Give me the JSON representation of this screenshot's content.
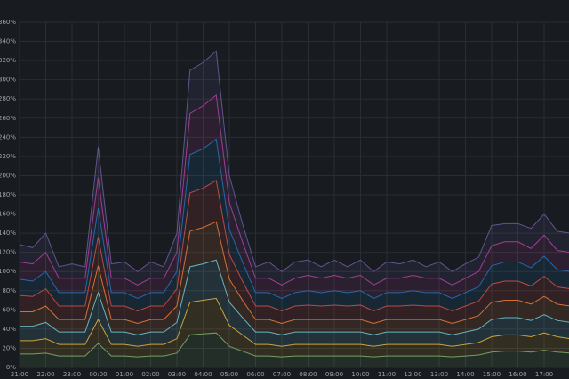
{
  "chart_data": {
    "type": "stacked-area",
    "x": [
      "21:00",
      "21:30",
      "22:00",
      "22:30",
      "23:00",
      "23:30",
      "00:00",
      "00:30",
      "01:00",
      "01:30",
      "02:00",
      "02:30",
      "03:00",
      "03:30",
      "04:00",
      "04:30",
      "05:00",
      "05:30",
      "06:00",
      "06:30",
      "07:00",
      "07:30",
      "08:00",
      "08:30",
      "09:00",
      "09:30",
      "10:00",
      "10:30",
      "11:00",
      "11:30",
      "12:00",
      "12:30",
      "13:00",
      "13:30",
      "14:00",
      "14:30",
      "15:00",
      "15:30",
      "16:00",
      "16:30",
      "17:00",
      "17:30",
      "18:00"
    ],
    "series": [
      {
        "color": "#7eb26d",
        "values": [
          14,
          14,
          15,
          12,
          12,
          12,
          25,
          12,
          12,
          11,
          12,
          12,
          15,
          34,
          35,
          36,
          22,
          17,
          12,
          12,
          11,
          12,
          12,
          12,
          12,
          12,
          12,
          11,
          12,
          12,
          12,
          12,
          12,
          11,
          12,
          13,
          16,
          17,
          17,
          16,
          18,
          16,
          15
        ]
      },
      {
        "color": "#eab839",
        "values": [
          14,
          14,
          15,
          12,
          12,
          12,
          25,
          12,
          12,
          11,
          12,
          12,
          15,
          34,
          35,
          36,
          22,
          17,
          12,
          12,
          11,
          12,
          12,
          12,
          12,
          12,
          12,
          11,
          12,
          12,
          12,
          12,
          12,
          11,
          12,
          13,
          16,
          17,
          17,
          16,
          18,
          16,
          15
        ]
      },
      {
        "color": "#6ed0e0",
        "values": [
          15,
          15,
          17,
          13,
          13,
          13,
          28,
          13,
          13,
          12,
          13,
          13,
          17,
          37,
          38,
          40,
          24,
          18,
          13,
          13,
          12,
          13,
          13,
          13,
          13,
          13,
          13,
          12,
          13,
          13,
          13,
          13,
          13,
          12,
          13,
          14,
          18,
          18,
          18,
          17,
          19,
          17,
          17
        ]
      },
      {
        "color": "#ef843c",
        "values": [
          15,
          15,
          17,
          13,
          13,
          13,
          28,
          13,
          13,
          12,
          13,
          13,
          17,
          37,
          38,
          40,
          24,
          18,
          13,
          13,
          12,
          13,
          13,
          13,
          13,
          13,
          13,
          12,
          13,
          13,
          13,
          13,
          13,
          12,
          13,
          14,
          18,
          18,
          18,
          17,
          19,
          17,
          17
        ]
      },
      {
        "color": "#e24d42",
        "values": [
          17,
          16,
          18,
          14,
          14,
          14,
          30,
          14,
          14,
          13,
          14,
          14,
          18,
          40,
          41,
          43,
          26,
          20,
          14,
          14,
          13,
          14,
          15,
          14,
          15,
          14,
          15,
          13,
          14,
          14,
          15,
          14,
          14,
          13,
          14,
          15,
          19,
          20,
          20,
          19,
          21,
          18,
          18
        ]
      },
      {
        "color": "#1f78c1",
        "values": [
          17,
          16,
          18,
          14,
          14,
          14,
          30,
          14,
          14,
          13,
          14,
          14,
          18,
          40,
          41,
          43,
          26,
          20,
          14,
          14,
          13,
          14,
          15,
          14,
          15,
          14,
          15,
          13,
          14,
          14,
          15,
          14,
          14,
          13,
          14,
          15,
          19,
          20,
          20,
          19,
          21,
          18,
          18
        ]
      },
      {
        "color": "#ba43a6",
        "values": [
          18,
          18,
          20,
          15,
          15,
          15,
          32,
          15,
          15,
          14,
          15,
          15,
          20,
          43,
          45,
          46,
          28,
          21,
          15,
          15,
          14,
          15,
          16,
          15,
          16,
          15,
          16,
          14,
          15,
          15,
          16,
          15,
          15,
          14,
          15,
          16,
          21,
          21,
          21,
          20,
          22,
          20,
          20
        ]
      },
      {
        "color": "#705da0",
        "values": [
          18,
          17,
          20,
          12,
          15,
          12,
          32,
          15,
          17,
          14,
          17,
          12,
          20,
          45,
          45,
          46,
          28,
          19,
          12,
          17,
          14,
          17,
          16,
          12,
          16,
          12,
          16,
          14,
          17,
          15,
          16,
          12,
          17,
          14,
          15,
          15,
          21,
          19,
          19,
          21,
          22,
          20,
          20
        ]
      }
    ],
    "ylim": [
      0,
      360
    ],
    "yticks": [
      {
        "value": 0,
        "label": "0%"
      },
      {
        "value": 20,
        "label": "20%"
      },
      {
        "value": 40,
        "label": "40%"
      },
      {
        "value": 60,
        "label": "60%"
      },
      {
        "value": 80,
        "label": "80%"
      },
      {
        "value": 100,
        "label": "100%"
      },
      {
        "value": 120,
        "label": "120%"
      },
      {
        "value": 140,
        "label": "140%"
      },
      {
        "value": 160,
        "label": "160%"
      },
      {
        "value": 180,
        "label": "180%"
      },
      {
        "value": 200,
        "label": "200%"
      },
      {
        "value": 220,
        "label": "220%"
      },
      {
        "value": 240,
        "label": "240%"
      },
      {
        "value": 260,
        "label": "260%"
      },
      {
        "value": 280,
        "label": "280%"
      },
      {
        "value": 300,
        "label": "300%"
      },
      {
        "value": 320,
        "label": "320%"
      },
      {
        "value": 340,
        "label": "340%"
      },
      {
        "value": 360,
        "label": "360%"
      }
    ],
    "grid": true
  }
}
